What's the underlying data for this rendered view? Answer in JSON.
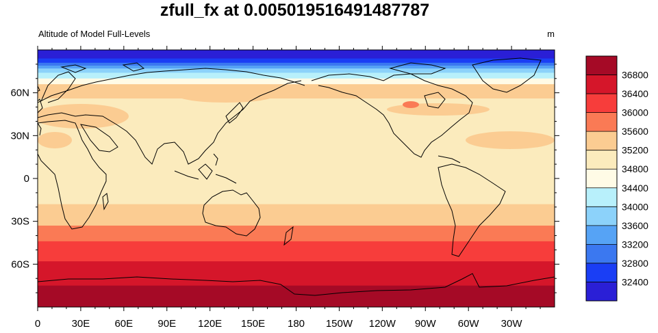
{
  "chart_data": {
    "type": "heatmap",
    "title": "zfull_fx at 0.005019516491487787",
    "left_string": "Altitude of Model Full-Levels",
    "right_string": "m",
    "projection": "cylindrical-equidistant, center longitude 180",
    "x_ticks": [
      "0",
      "30E",
      "60E",
      "90E",
      "120E",
      "150E",
      "180",
      "150W",
      "120W",
      "90W",
      "60W",
      "30W"
    ],
    "y_ticks": [
      "60N",
      "30N",
      "0",
      "30S",
      "60S"
    ],
    "colorbar": {
      "labels": [
        "32400",
        "32800",
        "33200",
        "33600",
        "34000",
        "34400",
        "34800",
        "35200",
        "35600",
        "36000",
        "36400",
        "36800"
      ],
      "colors": [
        "#2a1fd6",
        "#1a3ef5",
        "#3b78f0",
        "#56a3f5",
        "#8cd2fa",
        "#b8f0fb",
        "#fffbe6",
        "#fbebbd",
        "#fbcc92",
        "#fa7a55",
        "#f73d3b",
        "#d5162a",
        "#a50a26"
      ]
    },
    "bands_from_north": [
      {
        "lat_top": 90,
        "lat_bottom": 84,
        "value": 32200
      },
      {
        "lat_top": 84,
        "lat_bottom": 81,
        "value": 32600
      },
      {
        "lat_top": 81,
        "lat_bottom": 79,
        "value": 33000
      },
      {
        "lat_top": 79,
        "lat_bottom": 77,
        "value": 33400
      },
      {
        "lat_top": 77,
        "lat_bottom": 74,
        "value": 33800
      },
      {
        "lat_top": 74,
        "lat_bottom": 70,
        "value": 34200
      },
      {
        "lat_top": 70,
        "lat_bottom": 66,
        "value": 34600
      },
      {
        "lat_top": 66,
        "lat_bottom": 56,
        "value": 35400
      },
      {
        "lat_top": 56,
        "lat_bottom": -18,
        "value": 35000
      },
      {
        "lat_top": -18,
        "lat_bottom": -33,
        "value": 35400
      },
      {
        "lat_top": -33,
        "lat_bottom": -44,
        "value": 35800
      },
      {
        "lat_top": -44,
        "lat_bottom": -58,
        "value": 36200
      },
      {
        "lat_top": -58,
        "lat_bottom": -75,
        "value": 36600
      },
      {
        "lat_top": -75,
        "lat_bottom": -90,
        "value": 37000
      }
    ]
  }
}
